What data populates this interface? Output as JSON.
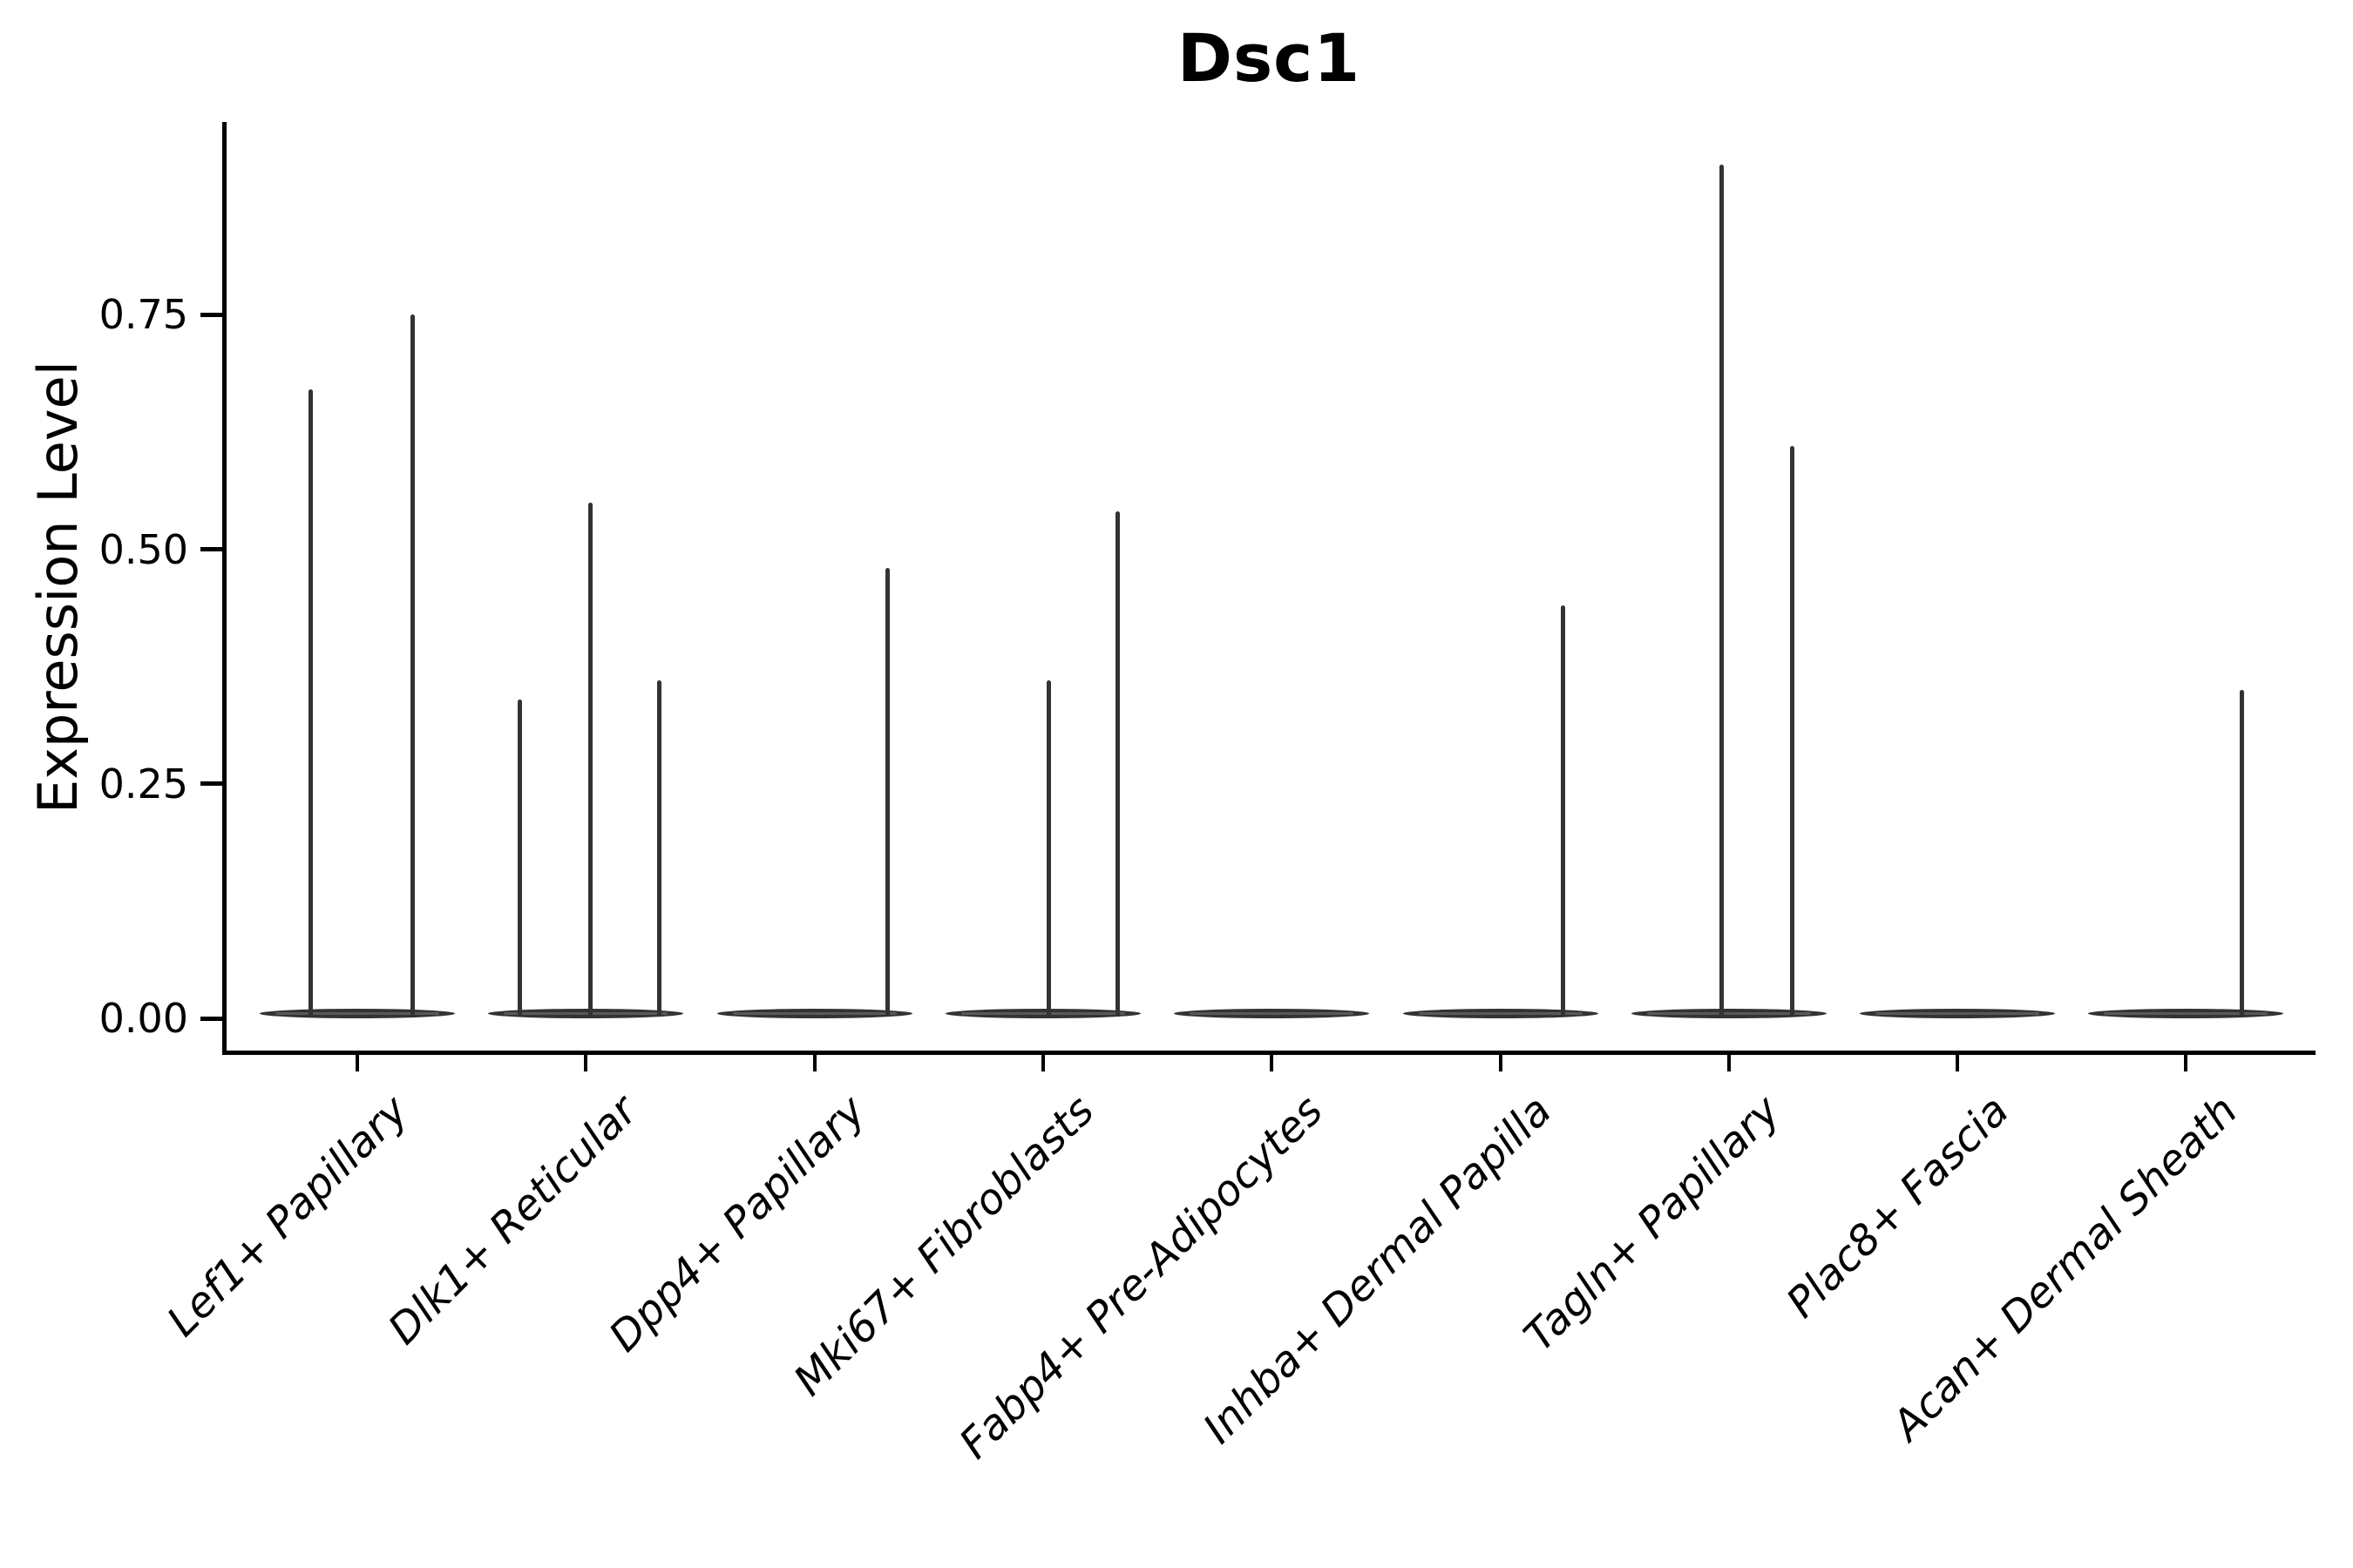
{
  "chart_data": {
    "type": "violin",
    "title": "Dsc1",
    "ylabel": "Expression Level",
    "xlabel": "",
    "categories": [
      "Lef1+ Papillary",
      "Dlk1+ Reticular",
      "Dpp4+ Papillary",
      "Mki67+ Fibroblasts",
      "Fabp4+ Pre-Adipocytes",
      "Inhba+ Dermal Papilla",
      "Tagln+ Papillary",
      "Plac8+ Fascia",
      "Acan+ Dermal Sheath"
    ],
    "yticks": [
      {
        "value": 0.0,
        "label": "0.00"
      },
      {
        "value": 0.25,
        "label": "0.25"
      },
      {
        "value": 0.5,
        "label": "0.50"
      },
      {
        "value": 0.75,
        "label": "0.75"
      }
    ],
    "ylim": [
      0,
      0.955
    ],
    "grid": false,
    "legend_position": "none",
    "groups": [
      {
        "category": "Lef1+ Papillary",
        "baseline_value": 0.0,
        "spikes": [
          {
            "dx": -54,
            "value": 0.67
          },
          {
            "dx": 63,
            "value": 0.75
          }
        ]
      },
      {
        "category": "Dlk1+ Reticular",
        "baseline_value": 0.0,
        "spikes": [
          {
            "dx": -76,
            "value": 0.34
          },
          {
            "dx": 5,
            "value": 0.55
          },
          {
            "dx": 84,
            "value": 0.36
          }
        ]
      },
      {
        "category": "Dpp4+ Papillary",
        "baseline_value": 0.0,
        "spikes": [
          {
            "dx": 84,
            "value": 0.48
          }
        ]
      },
      {
        "category": "Mki67+ Fibroblasts",
        "baseline_value": 0.0,
        "spikes": [
          {
            "dx": 7,
            "value": 0.36
          },
          {
            "dx": 86,
            "value": 0.54
          }
        ]
      },
      {
        "category": "Fabp4+ Pre-Adipocytes",
        "baseline_value": 0.0,
        "spikes": []
      },
      {
        "category": "Inhba+ Dermal Papilla",
        "baseline_value": 0.0,
        "spikes": [
          {
            "dx": 72,
            "value": 0.44
          }
        ]
      },
      {
        "category": "Tagln+ Papillary",
        "baseline_value": 0.0,
        "spikes": [
          {
            "dx": -8,
            "value": 0.91
          },
          {
            "dx": 73,
            "value": 0.61
          }
        ]
      },
      {
        "category": "Plac8+ Fascia",
        "baseline_value": 0.0,
        "spikes": []
      },
      {
        "category": "Acan+ Dermal Sheath",
        "baseline_value": 0.0,
        "spikes": [
          {
            "dx": 64,
            "value": 0.35
          }
        ]
      }
    ],
    "colors": {
      "violin_stroke": "#333333",
      "axis": "#000000",
      "text": "#000000",
      "background": "#ffffff"
    }
  }
}
